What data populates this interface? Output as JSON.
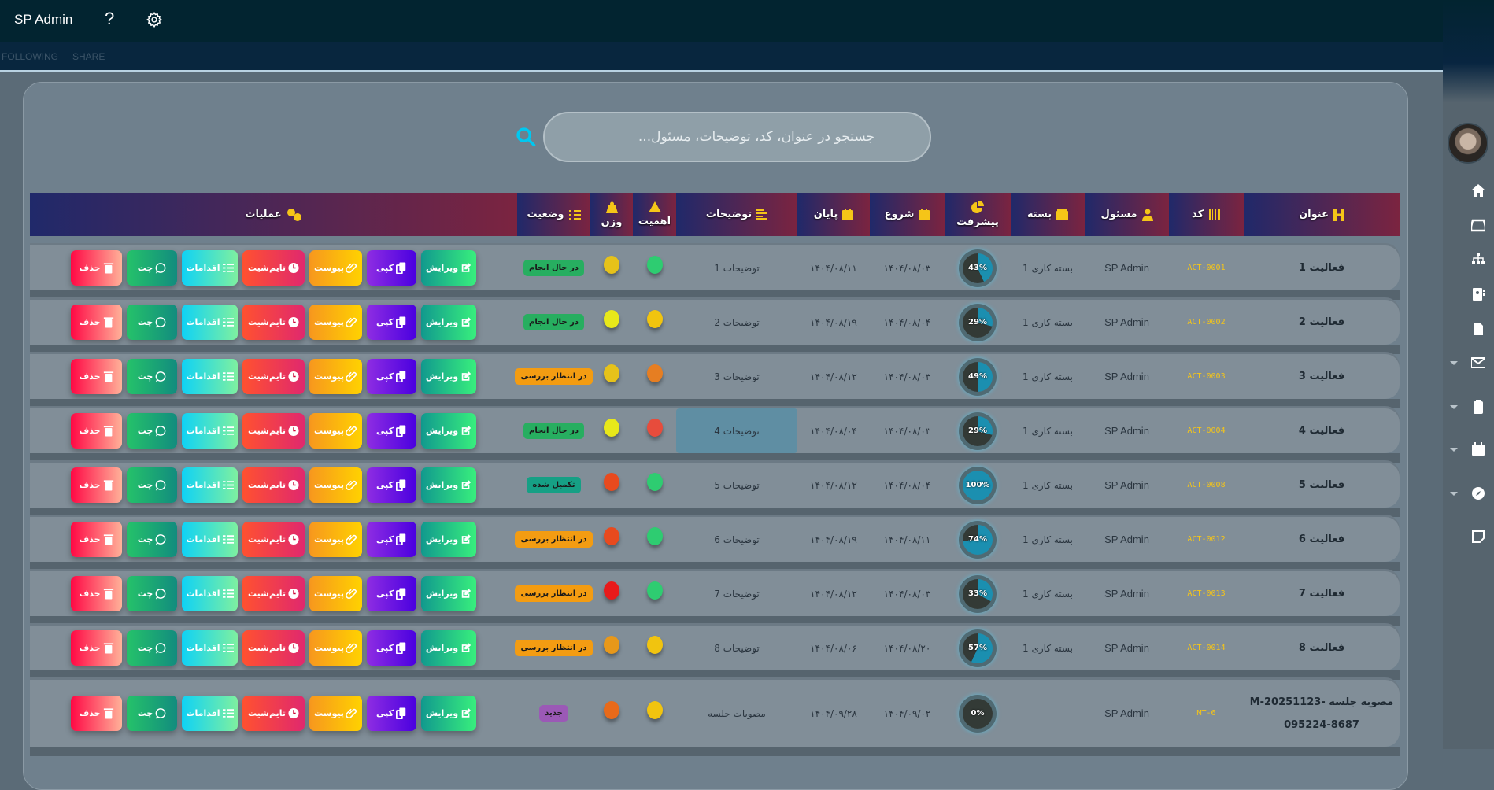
{
  "app": {
    "title": "SP Admin",
    "help": "?"
  },
  "subbar": {
    "following": "FOLLOWING",
    "share": "SHARE"
  },
  "search": {
    "placeholder": "جستجو در عنوان، کد، توضیحات، مسئول..."
  },
  "headers": {
    "title": "عنوان",
    "code": "کد",
    "owner": "مسئول",
    "package": "بسته",
    "progress": "پیشرفت",
    "start": "شروع",
    "end": "پایان",
    "desc": "توضیحات",
    "importance": "اهمیت",
    "weight": "وزن",
    "status": "وضعیت",
    "ops": "عملیات"
  },
  "buttons": [
    {
      "id": "edit",
      "label": "ویرایش",
      "icon": "edit-icon",
      "grad": [
        "#11998e",
        "#38ef7d"
      ]
    },
    {
      "id": "copy",
      "label": "کپی",
      "icon": "copy-icon",
      "grad": [
        "#8e2de2",
        "#4a00e0"
      ]
    },
    {
      "id": "attach",
      "label": "پیوست",
      "icon": "paperclip-icon",
      "grad": [
        "#f7971e",
        "#ffd200"
      ]
    },
    {
      "id": "timesheet",
      "label": "تایم‌شیت",
      "icon": "clock-icon",
      "grad": [
        "#ff5130",
        "#e0286e"
      ]
    },
    {
      "id": "actions",
      "label": "اقدامات",
      "icon": "checklist-icon",
      "grad": [
        "#0fd2f5",
        "#7ef0a0"
      ]
    },
    {
      "id": "chat",
      "label": "چت",
      "icon": "whatsapp-icon",
      "grad": [
        "#25c26a",
        "#128c7e"
      ]
    },
    {
      "id": "delete",
      "label": "حذف",
      "icon": "trash-icon",
      "grad": [
        "#ff0844",
        "#ffb199"
      ]
    }
  ],
  "statuses": {
    "inprogress": {
      "label": "در حال انجام",
      "color": "#27ae60"
    },
    "review": {
      "label": "در انتظار بررسی",
      "color": "#f39c12"
    },
    "done": {
      "label": "تکمیل شده",
      "color": "#16a085"
    },
    "new": {
      "label": "جدید",
      "color": "#9b59b6"
    }
  },
  "rows": [
    {
      "title": "فعالیت 1",
      "code": "ACT-0001",
      "owner": "SP Admin",
      "package": "بسته کاری 1",
      "progress": 43,
      "progress_label": "43%",
      "start": "۱۴۰۴/۰۸/۰۳",
      "end": "۱۴۰۴/۰۸/۱۱",
      "desc": "توضیحات 1",
      "importance": "#2ecc71",
      "weight": "#e6c21a",
      "status": "inprogress"
    },
    {
      "title": "فعالیت 2",
      "code": "ACT-0002",
      "owner": "SP Admin",
      "package": "بسته کاری 1",
      "progress": 29,
      "progress_label": "29%",
      "start": "۱۴۰۴/۰۸/۰۴",
      "end": "۱۴۰۴/۰۸/۱۹",
      "desc": "توضیحات 2",
      "importance": "#f1c40f",
      "weight": "#e8e81a",
      "status": "inprogress"
    },
    {
      "title": "فعالیت 3",
      "code": "ACT-0003",
      "owner": "SP Admin",
      "package": "بسته کاری 1",
      "progress": 49,
      "progress_label": "49%",
      "start": "۱۴۰۴/۰۸/۰۳",
      "end": "۱۴۰۴/۰۸/۱۲",
      "desc": "توضیحات 3",
      "importance": "#e67e22",
      "weight": "#e6c21a",
      "status": "review"
    },
    {
      "title": "فعالیت 4",
      "code": "ACT-0004",
      "owner": "SP Admin",
      "package": "بسته کاری 1",
      "progress": 29,
      "progress_label": "29%",
      "start": "۱۴۰۴/۰۸/۰۳",
      "end": "۱۴۰۴/۰۸/۰۴",
      "desc": "توضیحات 4",
      "importance": "#e74c3c",
      "weight": "#e8e81a",
      "status": "inprogress",
      "highlight": true
    },
    {
      "title": "فعالیت 5",
      "code": "ACT-0008",
      "owner": "SP Admin",
      "package": "بسته کاری 1",
      "progress": 100,
      "progress_label": "100%",
      "start": "۱۴۰۴/۰۸/۰۴",
      "end": "۱۴۰۴/۰۸/۱۲",
      "desc": "توضیحات 5",
      "importance": "#2ecc71",
      "weight": "#e84a1e",
      "status": "done"
    },
    {
      "title": "فعالیت 6",
      "code": "ACT-0012",
      "owner": "SP Admin",
      "package": "بسته کاری 1",
      "progress": 74,
      "progress_label": "74%",
      "start": "۱۴۰۴/۰۸/۱۱",
      "end": "۱۴۰۴/۰۸/۱۹",
      "desc": "توضیحات 6",
      "importance": "#2ecc71",
      "weight": "#e84a1e",
      "status": "review"
    },
    {
      "title": "فعالیت 7",
      "code": "ACT-0013",
      "owner": "SP Admin",
      "package": "بسته کاری 1",
      "progress": 33,
      "progress_label": "33%",
      "start": "۱۴۰۴/۰۸/۰۳",
      "end": "۱۴۰۴/۰۸/۱۲",
      "desc": "توضیحات 7",
      "importance": "#2ecc71",
      "weight": "#e81a1a",
      "status": "review"
    },
    {
      "title": "فعالیت 8",
      "code": "ACT-0014",
      "owner": "SP Admin",
      "package": "بسته کاری 1",
      "progress": 57,
      "progress_label": "57%",
      "start": "۱۴۰۴/۰۸/۲۰",
      "end": "۱۴۰۴/۰۸/۰۶",
      "desc": "توضیحات 8",
      "importance": "#f1c40f",
      "weight": "#e8981a",
      "status": "review"
    },
    {
      "title": "مصوبه جلسه -M-20251123",
      "title2": "095224-8687",
      "code": "MT-6",
      "owner": "SP Admin",
      "package": "",
      "progress": 0,
      "progress_label": "0%",
      "start": "۱۴۰۴/۰۹/۰۲",
      "end": "۱۴۰۴/۰۹/۲۸",
      "desc": "مصوبات جلسه",
      "importance": "#f1c40f",
      "weight": "#e86a1a",
      "status": "new"
    }
  ]
}
